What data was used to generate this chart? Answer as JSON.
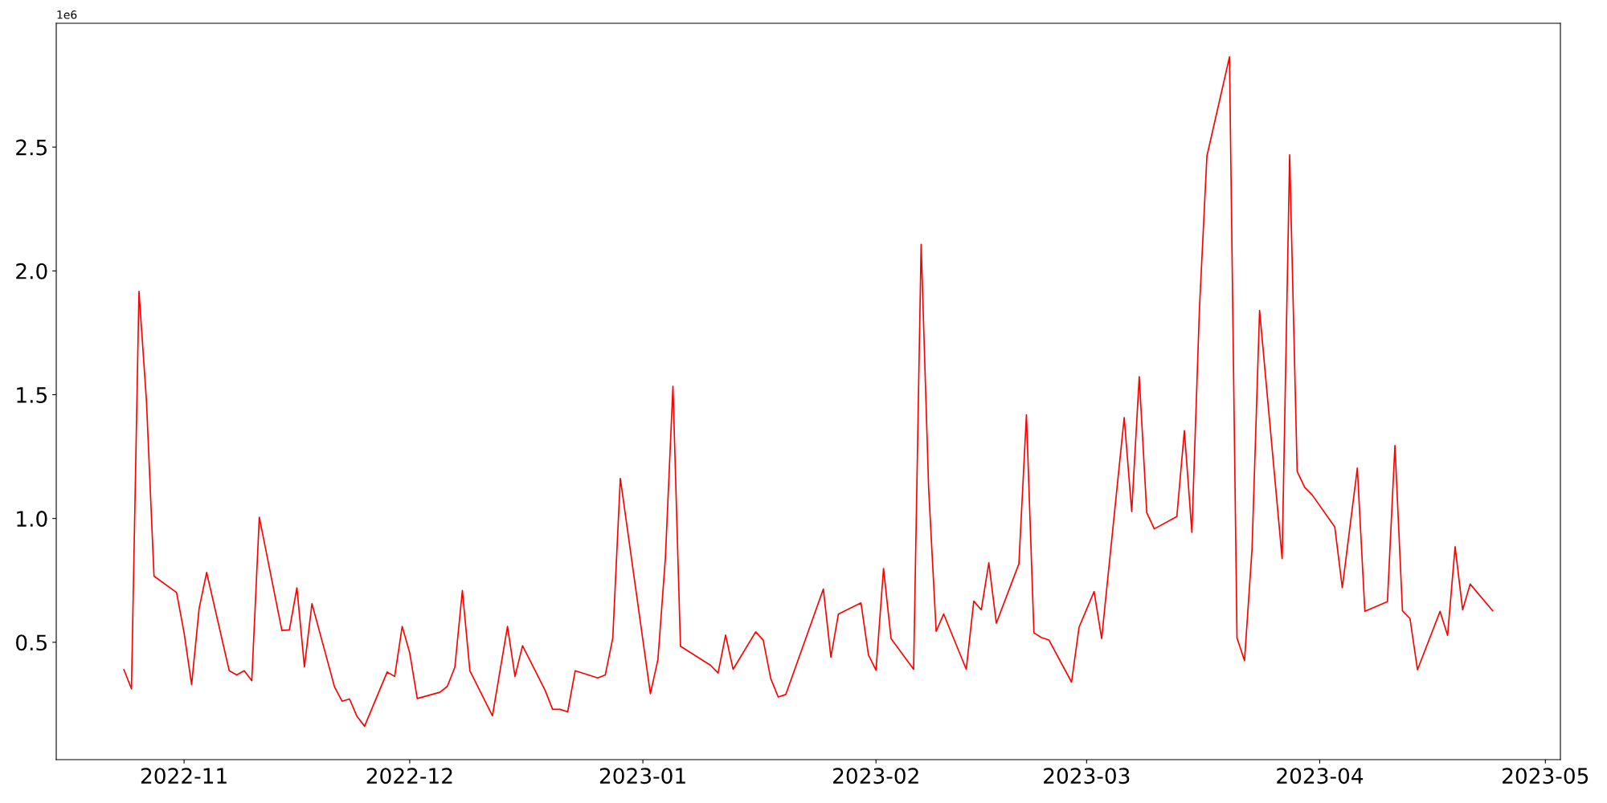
{
  "chart_data": {
    "type": "line",
    "x": [
      "2022-10-24",
      "2022-10-25",
      "2022-10-26",
      "2022-10-27",
      "2022-10-28",
      "2022-10-31",
      "2022-11-01",
      "2022-11-02",
      "2022-11-03",
      "2022-11-04",
      "2022-11-07",
      "2022-11-08",
      "2022-11-09",
      "2022-11-10",
      "2022-11-11",
      "2022-11-14",
      "2022-11-15",
      "2022-11-16",
      "2022-11-17",
      "2022-11-18",
      "2022-11-21",
      "2022-11-22",
      "2022-11-23",
      "2022-11-24",
      "2022-11-25",
      "2022-11-28",
      "2022-11-29",
      "2022-11-30",
      "2022-12-01",
      "2022-12-02",
      "2022-12-05",
      "2022-12-06",
      "2022-12-07",
      "2022-12-08",
      "2022-12-09",
      "2022-12-12",
      "2022-12-14",
      "2022-12-15",
      "2022-12-16",
      "2022-12-19",
      "2022-12-20",
      "2022-12-21",
      "2022-12-22",
      "2022-12-23",
      "2022-12-26",
      "2022-12-27",
      "2022-12-28",
      "2022-12-29",
      "2023-01-02",
      "2023-01-03",
      "2023-01-04",
      "2023-01-05",
      "2023-01-06",
      "2023-01-10",
      "2023-01-11",
      "2023-01-12",
      "2023-01-13",
      "2023-01-16",
      "2023-01-17",
      "2023-01-18",
      "2023-01-19",
      "2023-01-20",
      "2023-01-25",
      "2023-01-26",
      "2023-01-27",
      "2023-01-30",
      "2023-01-31",
      "2023-02-01",
      "2023-02-02",
      "2023-02-03",
      "2023-02-06",
      "2023-02-07",
      "2023-02-08",
      "2023-02-09",
      "2023-02-10",
      "2023-02-13",
      "2023-02-14",
      "2023-02-15",
      "2023-02-16",
      "2023-02-17",
      "2023-02-20",
      "2023-02-21",
      "2023-02-22",
      "2023-02-23",
      "2023-02-24",
      "2023-02-27",
      "2023-02-28",
      "2023-03-02",
      "2023-03-03",
      "2023-03-06",
      "2023-03-07",
      "2023-03-08",
      "2023-03-09",
      "2023-03-10",
      "2023-03-13",
      "2023-03-14",
      "2023-03-15",
      "2023-03-16",
      "2023-03-17",
      "2023-03-20",
      "2023-03-21",
      "2023-03-22",
      "2023-03-23",
      "2023-03-24",
      "2023-03-27",
      "2023-03-28",
      "2023-03-29",
      "2023-03-30",
      "2023-03-31",
      "2023-04-03",
      "2023-04-04",
      "2023-04-06",
      "2023-04-07",
      "2023-04-10",
      "2023-04-11",
      "2023-04-12",
      "2023-04-13",
      "2023-04-14",
      "2023-04-17",
      "2023-04-18",
      "2023-04-19",
      "2023-04-20",
      "2023-04-21",
      "2023-04-24"
    ],
    "series": [
      {
        "color": "#ff0000",
        "values": [
          0.389,
          0.312,
          1.917,
          1.472,
          0.767,
          0.701,
          0.538,
          0.329,
          0.637,
          0.782,
          0.385,
          0.368,
          0.385,
          0.345,
          1.005,
          0.548,
          0.55,
          0.72,
          0.401,
          0.656,
          0.32,
          0.262,
          0.271,
          0.2,
          0.161,
          0.38,
          0.362,
          0.564,
          0.457,
          0.273,
          0.298,
          0.322,
          0.399,
          0.709,
          0.385,
          0.203,
          0.564,
          0.362,
          0.486,
          0.306,
          0.229,
          0.229,
          0.219,
          0.385,
          0.356,
          0.368,
          0.517,
          1.162,
          0.292,
          0.43,
          0.842,
          1.534,
          0.484,
          0.407,
          0.376,
          0.529,
          0.391,
          0.542,
          0.509,
          0.354,
          0.279,
          0.289,
          0.715,
          0.44,
          0.614,
          0.659,
          0.449,
          0.387,
          0.798,
          0.515,
          0.391,
          2.107,
          1.121,
          0.544,
          0.614,
          0.391,
          0.666,
          0.631,
          0.821,
          0.577,
          0.817,
          1.419,
          0.538,
          0.519,
          0.509,
          0.339,
          0.561,
          0.705,
          0.515,
          1.407,
          1.028,
          1.573,
          1.024,
          0.958,
          1.008,
          1.355,
          0.944,
          1.844,
          2.464,
          2.864,
          0.517,
          0.426,
          0.877,
          1.84,
          0.838,
          2.469,
          1.19,
          1.126,
          1.095,
          0.966,
          0.72,
          1.204,
          0.625,
          0.664,
          1.295,
          0.627,
          0.596,
          0.389,
          0.625,
          0.528,
          0.886,
          0.631,
          0.735,
          0.627
        ]
      }
    ],
    "xlim": [
      "2022-10-15",
      "2023-05-03"
    ],
    "xticks": [
      {
        "value": "2022-11-01",
        "label": "2022-11"
      },
      {
        "value": "2022-12-01",
        "label": "2022-12"
      },
      {
        "value": "2023-01-01",
        "label": "2023-01"
      },
      {
        "value": "2023-02-01",
        "label": "2023-02"
      },
      {
        "value": "2023-03-01",
        "label": "2023-03"
      },
      {
        "value": "2023-04-01",
        "label": "2023-04"
      },
      {
        "value": "2023-05-01",
        "label": "2023-05"
      }
    ],
    "ylim": [
      0.026,
      3.0
    ],
    "yticks": [
      0.5,
      {
        "value": 1,
        "label": "1.0"
      },
      1.5,
      {
        "value": 2,
        "label": "2.0"
      },
      2.5
    ],
    "annotations": [
      "1e6"
    ],
    "grid": false,
    "marker": "none",
    "line_style": "solid"
  }
}
